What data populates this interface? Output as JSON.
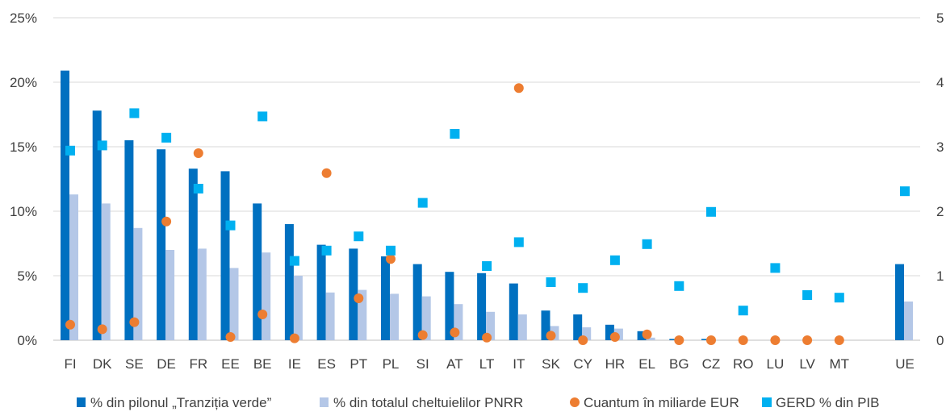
{
  "chart_data": {
    "type": "bar",
    "categories": [
      "FI",
      "DK",
      "SE",
      "DE",
      "FR",
      "EE",
      "BE",
      "IE",
      "ES",
      "PT",
      "PL",
      "SI",
      "AT",
      "LT",
      "IT",
      "SK",
      "CY",
      "HR",
      "EL",
      "BG",
      "CZ",
      "RO",
      "LU",
      "LV",
      "MT",
      "UE"
    ],
    "series": [
      {
        "name": "% din pilonul „Tranziția verde”",
        "type": "bar",
        "axis": "left",
        "color": "#0070C0",
        "values": [
          20.9,
          17.8,
          15.5,
          14.8,
          13.3,
          13.1,
          10.6,
          9.0,
          7.4,
          7.1,
          6.5,
          5.9,
          5.3,
          5.2,
          4.4,
          2.3,
          2.0,
          1.2,
          0.7,
          0.1,
          0.1,
          0,
          0,
          0,
          0,
          5.9
        ]
      },
      {
        "name": "% din totalul cheltuielilor PNRR",
        "type": "bar",
        "axis": "left",
        "color": "#B4C7E7",
        "values": [
          11.3,
          10.6,
          8.7,
          7.0,
          7.1,
          5.6,
          6.8,
          5.0,
          3.7,
          3.9,
          3.6,
          3.4,
          2.8,
          2.2,
          2.0,
          1.1,
          1.0,
          0.9,
          0.2,
          0,
          0,
          0,
          0,
          0,
          0,
          3.0
        ]
      },
      {
        "name": "Cuantum în miliarde EUR",
        "type": "scatter",
        "marker": "circle",
        "axis": "right",
        "color": "#ED7D31",
        "values": [
          0.24,
          0.17,
          0.28,
          1.84,
          2.9,
          0.05,
          0.4,
          0.03,
          2.59,
          0.65,
          1.26,
          0.08,
          0.12,
          0.04,
          3.91,
          0.07,
          0.0,
          0.05,
          0.09,
          0.0,
          0.0,
          0.0,
          0.0,
          0.0,
          0.0,
          null
        ]
      },
      {
        "name": "GERD % din PIB",
        "type": "scatter",
        "marker": "square",
        "axis": "right",
        "color": "#00B0F0",
        "values": [
          2.94,
          3.02,
          3.52,
          3.14,
          2.35,
          1.78,
          3.47,
          1.23,
          1.39,
          1.61,
          1.39,
          2.13,
          3.2,
          1.15,
          1.52,
          0.9,
          0.81,
          1.24,
          1.49,
          0.84,
          1.99,
          0.46,
          1.12,
          0.7,
          0.66,
          2.31
        ]
      }
    ],
    "y_left": {
      "ticks": [
        "0%",
        "5%",
        "10%",
        "15%",
        "20%",
        "25%"
      ],
      "ylim": [
        0,
        25
      ]
    },
    "y_right": {
      "ticks": [
        "0",
        "1",
        "2",
        "3",
        "4",
        "5"
      ],
      "ylim": [
        0,
        5
      ]
    },
    "grid": true,
    "legend": "bottom"
  }
}
